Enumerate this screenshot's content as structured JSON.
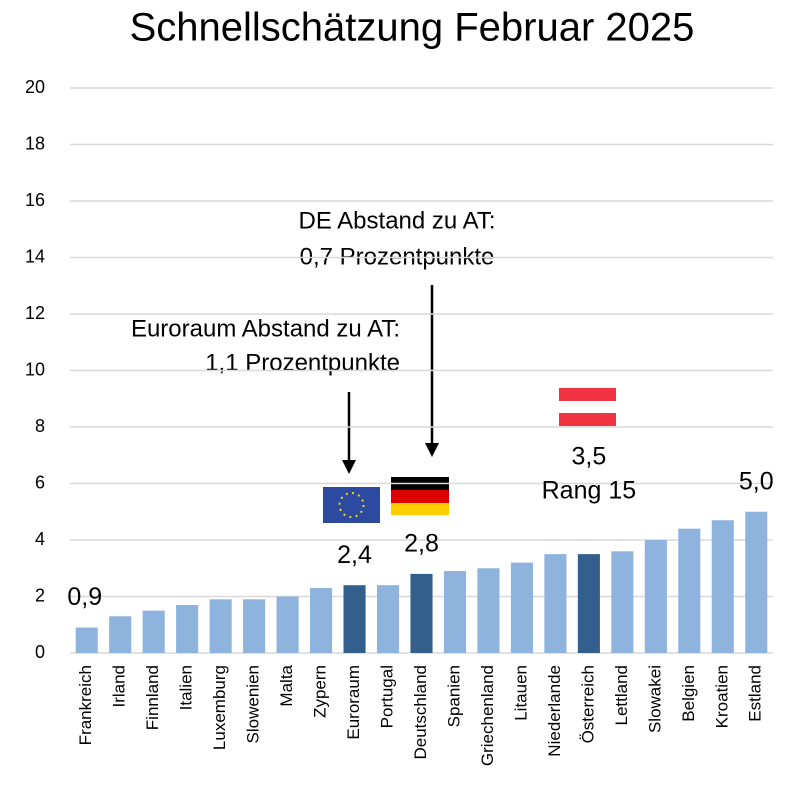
{
  "chart_data": {
    "type": "bar",
    "title": "Schnellschätzung Februar 2025",
    "categories": [
      "Frankreich",
      "Irland",
      "Finnland",
      "Italien",
      "Luxemburg",
      "Slowenien",
      "Malta",
      "Zypern",
      "Euroraum",
      "Portugal",
      "Deutschland",
      "Spanien",
      "Griechenland",
      "Litauen",
      "Niederlande",
      "Österreich",
      "Lettland",
      "Slowakei",
      "Belgien",
      "Kroatien",
      "Estland"
    ],
    "values": [
      0.9,
      1.3,
      1.5,
      1.7,
      1.9,
      1.9,
      2.0,
      2.3,
      2.4,
      2.4,
      2.8,
      2.9,
      3.0,
      3.2,
      3.5,
      3.5,
      3.6,
      4.0,
      4.4,
      4.7,
      5.0
    ],
    "value_labels": [
      "0,9",
      null,
      null,
      null,
      null,
      null,
      null,
      null,
      "2,4",
      null,
      "2,8",
      null,
      null,
      null,
      null,
      "3,5",
      null,
      null,
      null,
      null,
      "5,0"
    ],
    "colors": [
      "#8eb4de",
      "#8eb4de",
      "#8eb4de",
      "#8eb4de",
      "#8eb4de",
      "#8eb4de",
      "#8eb4de",
      "#8eb4de",
      "#335f8c",
      "#8eb4de",
      "#335f8c",
      "#8eb4de",
      "#8eb4de",
      "#8eb4de",
      "#8eb4de",
      "#335f8c",
      "#8eb4de",
      "#8eb4de",
      "#8eb4de",
      "#8eb4de",
      "#8eb4de"
    ],
    "ylim": [
      0,
      20
    ],
    "yticks": [
      0,
      2,
      4,
      6,
      8,
      10,
      12,
      14,
      16,
      18,
      20
    ],
    "grid": true,
    "annotations": {
      "rank": "Rang 15",
      "de": [
        "DE Abstand zu AT:",
        "0,7 Prozentpunkte"
      ],
      "euro": [
        "Euroraum Abstand zu AT:",
        "1,1 Prozentpunkte"
      ]
    }
  }
}
